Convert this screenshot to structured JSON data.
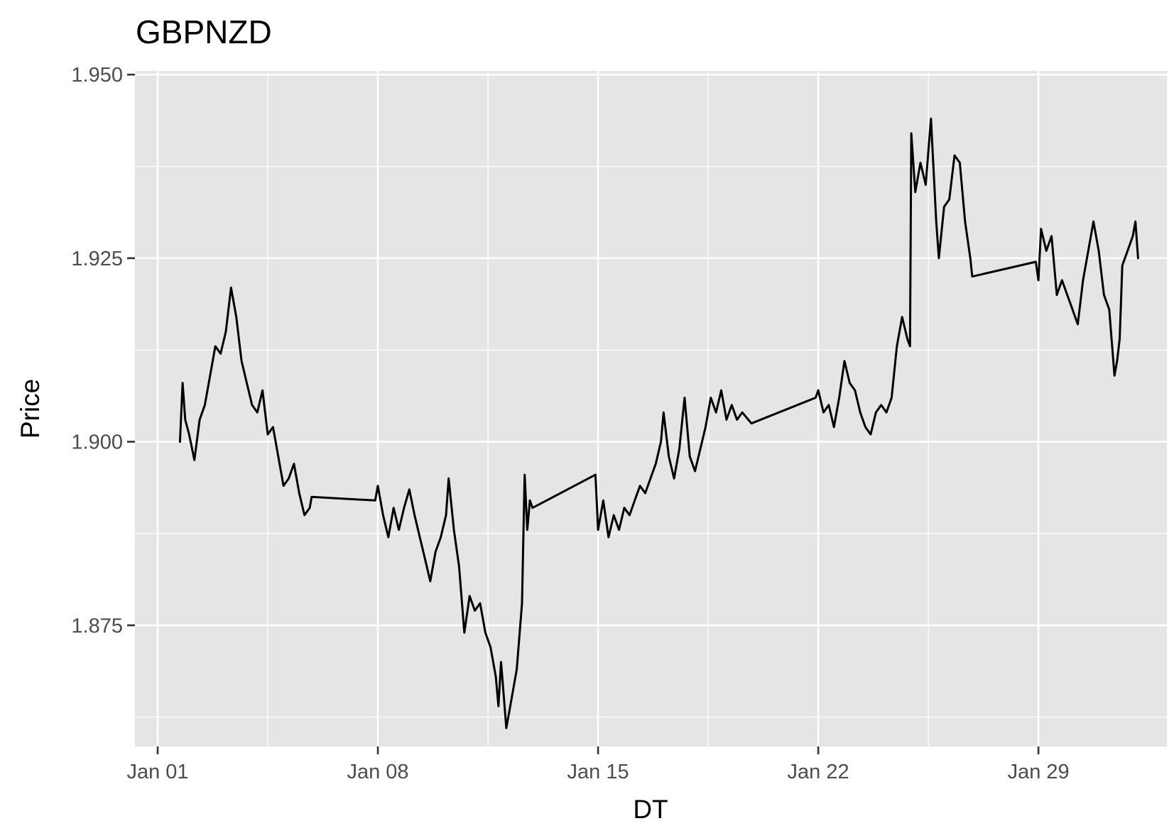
{
  "chart_data": {
    "type": "line",
    "title": "GBPNZD",
    "xlabel": "DT",
    "ylabel": "Price",
    "x_scale": "date",
    "xlim": [
      "2024-01-01",
      "2024-02-01"
    ],
    "ylim": [
      1.8585,
      1.9505
    ],
    "x_ticks": [
      {
        "date": "2024-01-01",
        "label": "Jan 01"
      },
      {
        "date": "2024-01-08",
        "label": "Jan 08"
      },
      {
        "date": "2024-01-15",
        "label": "Jan 15"
      },
      {
        "date": "2024-01-22",
        "label": "Jan 22"
      },
      {
        "date": "2024-01-29",
        "label": "Jan 29"
      }
    ],
    "y_ticks": [
      {
        "value": 1.875,
        "label": "1.875"
      },
      {
        "value": 1.9,
        "label": "1.900"
      },
      {
        "value": 1.925,
        "label": "1.925"
      },
      {
        "value": 1.95,
        "label": "1.950"
      }
    ],
    "grid": true,
    "legend": "none",
    "colors": {
      "panel": "#e5e5e5",
      "grid": "#ffffff",
      "line": "#000000",
      "tick_text": "#4d4d4d"
    },
    "series": [
      {
        "values": [
          [
            "2024-01-01 17:00",
            1.9
          ],
          [
            "2024-01-01 19:00",
            1.908
          ],
          [
            "2024-01-01 21:00",
            1.903
          ],
          [
            "2024-01-02 00:00",
            1.901
          ],
          [
            "2024-01-02 04:00",
            1.8975
          ],
          [
            "2024-01-02 08:00",
            1.903
          ],
          [
            "2024-01-02 12:00",
            1.905
          ],
          [
            "2024-01-02 16:00",
            1.909
          ],
          [
            "2024-01-02 20:00",
            1.913
          ],
          [
            "2024-01-03 00:00",
            1.912
          ],
          [
            "2024-01-03 04:00",
            1.915
          ],
          [
            "2024-01-03 08:00",
            1.921
          ],
          [
            "2024-01-03 12:00",
            1.917
          ],
          [
            "2024-01-03 16:00",
            1.911
          ],
          [
            "2024-01-03 20:00",
            1.908
          ],
          [
            "2024-01-04 00:00",
            1.905
          ],
          [
            "2024-01-04 04:00",
            1.904
          ],
          [
            "2024-01-04 08:00",
            1.907
          ],
          [
            "2024-01-04 12:00",
            1.901
          ],
          [
            "2024-01-04 16:00",
            1.902
          ],
          [
            "2024-01-04 20:00",
            1.898
          ],
          [
            "2024-01-05 00:00",
            1.894
          ],
          [
            "2024-01-05 04:00",
            1.895
          ],
          [
            "2024-01-05 08:00",
            1.897
          ],
          [
            "2024-01-05 12:00",
            1.893
          ],
          [
            "2024-01-05 16:00",
            1.89
          ],
          [
            "2024-01-05 20:00",
            1.891
          ],
          [
            "2024-01-05 21:30",
            1.8925
          ],
          [
            "2024-01-07 22:00",
            1.892
          ],
          [
            "2024-01-08 00:00",
            1.894
          ],
          [
            "2024-01-08 04:00",
            1.89
          ],
          [
            "2024-01-08 08:00",
            1.887
          ],
          [
            "2024-01-08 12:00",
            1.891
          ],
          [
            "2024-01-08 16:00",
            1.888
          ],
          [
            "2024-01-08 20:00",
            1.891
          ],
          [
            "2024-01-09 00:00",
            1.8935
          ],
          [
            "2024-01-09 04:00",
            1.89
          ],
          [
            "2024-01-09 08:00",
            1.887
          ],
          [
            "2024-01-09 12:00",
            1.884
          ],
          [
            "2024-01-09 16:00",
            1.881
          ],
          [
            "2024-01-09 20:00",
            1.885
          ],
          [
            "2024-01-10 00:00",
            1.887
          ],
          [
            "2024-01-10 04:00",
            1.89
          ],
          [
            "2024-01-10 06:00",
            1.895
          ],
          [
            "2024-01-10 10:00",
            1.888
          ],
          [
            "2024-01-10 14:00",
            1.883
          ],
          [
            "2024-01-10 18:00",
            1.874
          ],
          [
            "2024-01-10 22:00",
            1.879
          ],
          [
            "2024-01-11 02:00",
            1.877
          ],
          [
            "2024-01-11 06:00",
            1.878
          ],
          [
            "2024-01-11 10:00",
            1.874
          ],
          [
            "2024-01-11 14:00",
            1.872
          ],
          [
            "2024-01-11 18:00",
            1.868
          ],
          [
            "2024-01-11 20:00",
            1.864
          ],
          [
            "2024-01-11 22:00",
            1.87
          ],
          [
            "2024-01-12 02:00",
            1.861
          ],
          [
            "2024-01-12 06:00",
            1.865
          ],
          [
            "2024-01-12 10:00",
            1.869
          ],
          [
            "2024-01-12 14:00",
            1.878
          ],
          [
            "2024-01-12 16:00",
            1.8955
          ],
          [
            "2024-01-12 18:00",
            1.888
          ],
          [
            "2024-01-12 20:00",
            1.892
          ],
          [
            "2024-01-12 22:00",
            1.891
          ],
          [
            "2024-01-14 22:00",
            1.8955
          ],
          [
            "2024-01-15 00:00",
            1.888
          ],
          [
            "2024-01-15 04:00",
            1.892
          ],
          [
            "2024-01-15 08:00",
            1.887
          ],
          [
            "2024-01-15 12:00",
            1.89
          ],
          [
            "2024-01-15 16:00",
            1.888
          ],
          [
            "2024-01-15 20:00",
            1.891
          ],
          [
            "2024-01-16 00:00",
            1.89
          ],
          [
            "2024-01-16 04:00",
            1.892
          ],
          [
            "2024-01-16 08:00",
            1.894
          ],
          [
            "2024-01-16 12:00",
            1.893
          ],
          [
            "2024-01-16 16:00",
            1.895
          ],
          [
            "2024-01-16 20:00",
            1.897
          ],
          [
            "2024-01-17 00:00",
            1.9
          ],
          [
            "2024-01-17 02:00",
            1.904
          ],
          [
            "2024-01-17 06:00",
            1.898
          ],
          [
            "2024-01-17 10:00",
            1.895
          ],
          [
            "2024-01-17 14:00",
            1.899
          ],
          [
            "2024-01-17 18:00",
            1.906
          ],
          [
            "2024-01-17 22:00",
            1.898
          ],
          [
            "2024-01-18 02:00",
            1.896
          ],
          [
            "2024-01-18 06:00",
            1.899
          ],
          [
            "2024-01-18 10:00",
            1.902
          ],
          [
            "2024-01-18 14:00",
            1.906
          ],
          [
            "2024-01-18 18:00",
            1.904
          ],
          [
            "2024-01-18 22:00",
            1.907
          ],
          [
            "2024-01-19 02:00",
            1.903
          ],
          [
            "2024-01-19 06:00",
            1.905
          ],
          [
            "2024-01-19 10:00",
            1.903
          ],
          [
            "2024-01-19 14:00",
            1.904
          ],
          [
            "2024-01-19 21:00",
            1.9025
          ],
          [
            "2024-01-21 22:00",
            1.906
          ],
          [
            "2024-01-22 00:00",
            1.907
          ],
          [
            "2024-01-22 04:00",
            1.904
          ],
          [
            "2024-01-22 08:00",
            1.905
          ],
          [
            "2024-01-22 12:00",
            1.902
          ],
          [
            "2024-01-22 16:00",
            1.906
          ],
          [
            "2024-01-22 20:00",
            1.911
          ],
          [
            "2024-01-23 00:00",
            1.908
          ],
          [
            "2024-01-23 04:00",
            1.907
          ],
          [
            "2024-01-23 08:00",
            1.904
          ],
          [
            "2024-01-23 12:00",
            1.902
          ],
          [
            "2024-01-23 16:00",
            1.901
          ],
          [
            "2024-01-23 20:00",
            1.904
          ],
          [
            "2024-01-24 00:00",
            1.905
          ],
          [
            "2024-01-24 04:00",
            1.904
          ],
          [
            "2024-01-24 08:00",
            1.906
          ],
          [
            "2024-01-24 12:00",
            1.913
          ],
          [
            "2024-01-24 16:00",
            1.917
          ],
          [
            "2024-01-24 20:00",
            1.914
          ],
          [
            "2024-01-24 22:00",
            1.913
          ],
          [
            "2024-01-24 23:00",
            1.942
          ],
          [
            "2024-01-25 02:00",
            1.934
          ],
          [
            "2024-01-25 06:00",
            1.938
          ],
          [
            "2024-01-25 10:00",
            1.935
          ],
          [
            "2024-01-25 14:00",
            1.944
          ],
          [
            "2024-01-25 18:00",
            1.93
          ],
          [
            "2024-01-25 20:00",
            1.925
          ],
          [
            "2024-01-26 00:00",
            1.932
          ],
          [
            "2024-01-26 04:00",
            1.933
          ],
          [
            "2024-01-26 08:00",
            1.939
          ],
          [
            "2024-01-26 12:00",
            1.938
          ],
          [
            "2024-01-26 16:00",
            1.93
          ],
          [
            "2024-01-26 20:00",
            1.925
          ],
          [
            "2024-01-26 21:30",
            1.9225
          ],
          [
            "2024-01-28 22:00",
            1.9245
          ],
          [
            "2024-01-29 00:00",
            1.922
          ],
          [
            "2024-01-29 02:00",
            1.929
          ],
          [
            "2024-01-29 06:00",
            1.926
          ],
          [
            "2024-01-29 10:00",
            1.928
          ],
          [
            "2024-01-29 14:00",
            1.92
          ],
          [
            "2024-01-29 18:00",
            1.922
          ],
          [
            "2024-01-29 22:00",
            1.92
          ],
          [
            "2024-01-30 02:00",
            1.918
          ],
          [
            "2024-01-30 06:00",
            1.916
          ],
          [
            "2024-01-30 10:00",
            1.922
          ],
          [
            "2024-01-30 14:00",
            1.926
          ],
          [
            "2024-01-30 18:00",
            1.93
          ],
          [
            "2024-01-30 22:00",
            1.926
          ],
          [
            "2024-01-31 02:00",
            1.92
          ],
          [
            "2024-01-31 06:00",
            1.918
          ],
          [
            "2024-01-31 10:00",
            1.909
          ],
          [
            "2024-01-31 12:00",
            1.911
          ],
          [
            "2024-01-31 14:00",
            1.914
          ],
          [
            "2024-01-31 16:00",
            1.924
          ],
          [
            "2024-01-31 20:00",
            1.926
          ],
          [
            "2024-02-01 00:00",
            1.928
          ],
          [
            "2024-02-01 02:00",
            1.93
          ],
          [
            "2024-02-01 04:00",
            1.925
          ]
        ]
      }
    ]
  }
}
